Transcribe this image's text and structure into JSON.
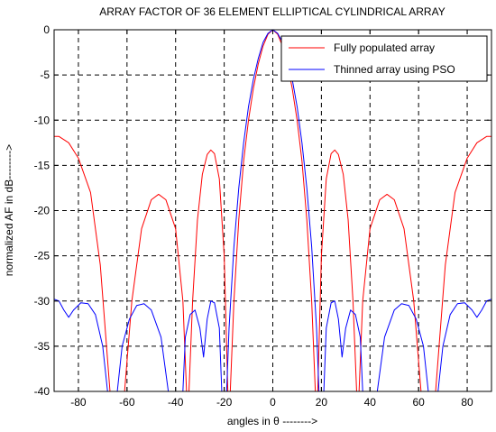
{
  "chart_data": {
    "type": "line",
    "title": "ARRAY FACTOR OF 36 ELEMENT ELLIPTICAL CYLINDRICAL ARRAY",
    "xlabel": "angles in θ  -------->",
    "ylabel": "normalized AF in dB-------->",
    "xlim": [
      -90,
      90
    ],
    "ylim": [
      -40,
      0
    ],
    "xticks": [
      -80,
      -60,
      -40,
      -20,
      0,
      20,
      40,
      60,
      80
    ],
    "yticks": [
      0,
      -5,
      -10,
      -15,
      -20,
      -25,
      -30,
      -35,
      -40
    ],
    "grid": true,
    "legend_position": "top-right",
    "series": [
      {
        "name": "Fully populated array",
        "color": "#ff0000",
        "points": [
          [
            0,
            0
          ],
          [
            2,
            -0.5
          ],
          [
            4,
            -1.8
          ],
          [
            6,
            -3.8
          ],
          [
            8,
            -6.5
          ],
          [
            10,
            -10
          ],
          [
            12,
            -14.5
          ],
          [
            14,
            -21
          ],
          [
            16,
            -30
          ],
          [
            17.5,
            -40
          ],
          [
            18.5,
            -40
          ],
          [
            20,
            -25
          ],
          [
            22,
            -16.5
          ],
          [
            24,
            -13.7
          ],
          [
            25.5,
            -13.3
          ],
          [
            27,
            -13.8
          ],
          [
            29,
            -16
          ],
          [
            31,
            -21
          ],
          [
            33,
            -30
          ],
          [
            34.5,
            -40
          ],
          [
            35.5,
            -40
          ],
          [
            37,
            -30
          ],
          [
            40,
            -22
          ],
          [
            44,
            -18.8
          ],
          [
            47,
            -18.2
          ],
          [
            50,
            -18.8
          ],
          [
            54,
            -22
          ],
          [
            58,
            -30
          ],
          [
            61,
            -40
          ],
          [
            67,
            -40
          ],
          [
            71,
            -26
          ],
          [
            75,
            -18
          ],
          [
            80,
            -14.2
          ],
          [
            84,
            -12.5
          ],
          [
            88,
            -11.8
          ],
          [
            90,
            -11.8
          ]
        ]
      },
      {
        "name": "Thinned array using PSO",
        "color": "#0000ff",
        "points": [
          [
            0,
            0
          ],
          [
            2,
            -0.4
          ],
          [
            4,
            -1.4
          ],
          [
            6,
            -3.2
          ],
          [
            8,
            -5.5
          ],
          [
            10,
            -8.5
          ],
          [
            12,
            -12.5
          ],
          [
            14,
            -17.5
          ],
          [
            16,
            -24
          ],
          [
            18,
            -33
          ],
          [
            19,
            -40
          ],
          [
            21,
            -40
          ],
          [
            22,
            -33
          ],
          [
            24,
            -30.2
          ],
          [
            25.5,
            -30
          ],
          [
            27,
            -32
          ],
          [
            28.5,
            -36.2
          ],
          [
            30,
            -33
          ],
          [
            32,
            -31
          ],
          [
            34,
            -31.5
          ],
          [
            36,
            -34
          ],
          [
            37,
            -40
          ],
          [
            43,
            -40
          ],
          [
            46,
            -34
          ],
          [
            50,
            -31
          ],
          [
            53,
            -30.3
          ],
          [
            56,
            -30.5
          ],
          [
            59,
            -32
          ],
          [
            62,
            -35
          ],
          [
            64,
            -40
          ],
          [
            68,
            -40
          ],
          [
            70,
            -35
          ],
          [
            73,
            -31.5
          ],
          [
            76,
            -30.3
          ],
          [
            79,
            -30.2
          ],
          [
            82,
            -31
          ],
          [
            84,
            -31.8
          ],
          [
            86,
            -31
          ],
          [
            88,
            -30
          ],
          [
            90,
            -29.8
          ]
        ]
      }
    ]
  }
}
